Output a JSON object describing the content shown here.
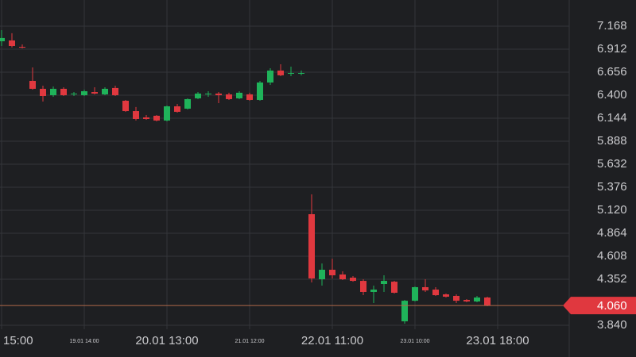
{
  "chart_data": {
    "type": "candlestick",
    "x_labels": [
      "15:00",
      "19.01 14:00",
      "20.01 13:00",
      "21.01 12:00",
      "22.01 11:00",
      "23.01 10:00",
      "23.01 18:00"
    ],
    "open": [
      7.0,
      7.009,
      6.938,
      6.559,
      6.471,
      6.4,
      6.471,
      6.418,
      6.4,
      6.435,
      6.409,
      6.48,
      6.338,
      6.223,
      6.153,
      6.171,
      6.118,
      6.276,
      6.25,
      6.365,
      6.418,
      6.418,
      6.409,
      6.365,
      6.409,
      6.347,
      6.541,
      6.674,
      6.647,
      6.647,
      5.076,
      4.352,
      4.458,
      4.405,
      4.37,
      4.334,
      4.211,
      4.299,
      4.325,
      3.884,
      4.113,
      4.264,
      4.237,
      4.184,
      4.167,
      4.122,
      4.105,
      4.149
    ],
    "high": [
      7.124,
      7.089,
      6.965,
      6.709,
      6.506,
      6.497,
      6.488,
      6.435,
      6.462,
      6.488,
      6.488,
      6.506,
      6.347,
      6.268,
      6.179,
      6.179,
      6.285,
      6.303,
      6.365,
      6.435,
      6.444,
      6.435,
      6.427,
      6.444,
      6.427,
      6.559,
      6.7,
      6.744,
      6.718,
      6.674,
      5.297,
      4.528,
      4.581,
      4.44,
      4.387,
      4.352,
      4.281,
      4.396,
      4.334,
      4.122,
      4.272,
      4.352,
      4.264,
      4.193,
      4.184,
      4.131,
      4.167,
      4.158
    ],
    "low": [
      6.947,
      6.93,
      6.921,
      6.462,
      6.329,
      6.382,
      6.391,
      6.391,
      6.391,
      6.409,
      6.4,
      6.391,
      6.215,
      6.118,
      6.126,
      6.109,
      6.109,
      6.206,
      6.241,
      6.356,
      6.382,
      6.312,
      6.347,
      6.356,
      6.338,
      6.338,
      6.515,
      6.612,
      6.612,
      6.621,
      4.317,
      4.281,
      4.361,
      4.343,
      4.325,
      4.175,
      4.087,
      4.211,
      4.193,
      3.858,
      4.105,
      4.211,
      4.167,
      4.149,
      4.087,
      4.096,
      4.096,
      4.052
    ],
    "close": [
      7.036,
      6.947,
      6.93,
      6.471,
      6.391,
      6.471,
      6.4,
      6.418,
      6.444,
      6.418,
      6.471,
      6.4,
      6.223,
      6.135,
      6.135,
      6.118,
      6.276,
      6.215,
      6.356,
      6.418,
      6.418,
      6.4,
      6.356,
      6.427,
      6.347,
      6.541,
      6.674,
      6.621,
      6.647,
      6.647,
      4.361,
      4.458,
      4.396,
      4.352,
      4.334,
      4.211,
      4.237,
      4.334,
      4.202,
      4.113,
      4.264,
      4.228,
      4.175,
      4.158,
      4.113,
      4.105,
      4.149,
      4.06
    ],
    "up_color": "#1fb35a",
    "down_color": "#e0383f",
    "ylim": [
      3.796,
      7.459
    ],
    "yticks": [
      {
        "value": 7.168,
        "label": "7.168"
      },
      {
        "value": 6.912,
        "label": "6.912"
      },
      {
        "value": 6.656,
        "label": "6.656"
      },
      {
        "value": 6.4,
        "label": "6.400"
      },
      {
        "value": 6.144,
        "label": "6.144"
      },
      {
        "value": 5.888,
        "label": "5.888"
      },
      {
        "value": 5.632,
        "label": "5.632"
      },
      {
        "value": 5.376,
        "label": "5.376"
      },
      {
        "value": 5.12,
        "label": "5.120"
      },
      {
        "value": 4.864,
        "label": "4.864"
      },
      {
        "value": 4.608,
        "label": "4.608"
      },
      {
        "value": 4.352,
        "label": "4.352"
      },
      {
        "value": 3.84,
        "label": "3.840"
      }
    ],
    "last_price": {
      "value": 4.06,
      "label": "4.060"
    },
    "last_price_color": "#e0383f",
    "price_line_color": "#b0694a",
    "grid": true
  }
}
